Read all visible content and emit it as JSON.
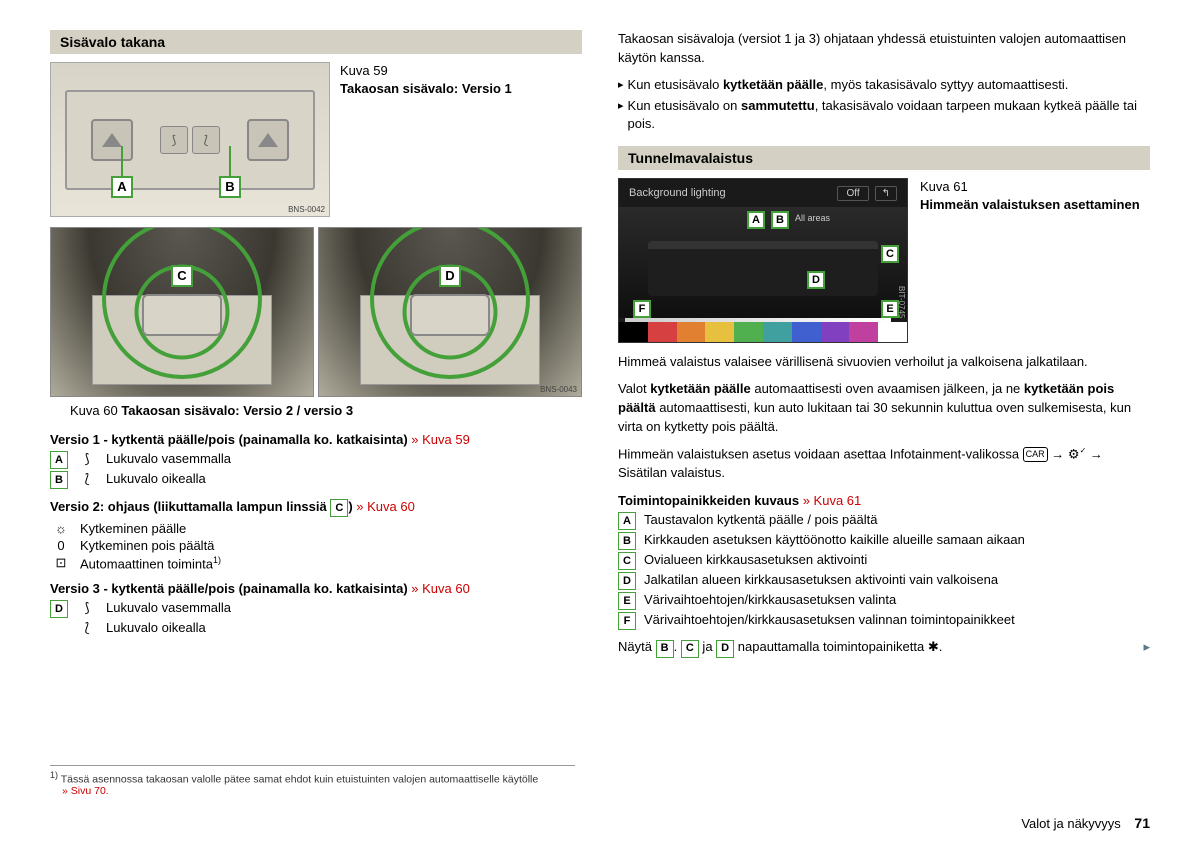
{
  "leftCol": {
    "section1": {
      "title": "Sisävalo takana",
      "fig59": {
        "label": "Kuva 59",
        "caption": "Takaosan sisävalo: Versio 1",
        "badges": [
          "A",
          "B"
        ],
        "imgCode": "BNS-0042"
      },
      "fig60": {
        "badges": [
          "C",
          "D"
        ],
        "imgCode": "BNS-0043",
        "captionPrefix": "Kuva 60",
        "caption": "Takaosan sisävalo: Versio 2 / versio 3"
      },
      "v1": {
        "title": "Versio 1 - kytkentä päälle/pois (painamalla ko. katkaisinta)",
        "ref": "» Kuva 59",
        "rows": [
          {
            "badge": "A",
            "icon": "⟆",
            "text": "Lukuvalo vasemmalla"
          },
          {
            "badge": "B",
            "icon": "⟅",
            "text": "Lukuvalo oikealla"
          }
        ]
      },
      "v2": {
        "title": "Versio 2: ohjaus (liikuttamalla lampun linssiä",
        "titleBadge": "C",
        "titleEnd": ")",
        "ref": "» Kuva 60",
        "rows": [
          {
            "icon": "☼",
            "text": "Kytkeminen päälle"
          },
          {
            "icon": "0",
            "text": "Kytkeminen pois päältä"
          },
          {
            "icon": "⊡",
            "text": "Automaattinen toiminta",
            "sup": "1)"
          }
        ]
      },
      "v3": {
        "title": "Versio 3 - kytkentä päälle/pois (painamalla ko. katkaisinta)",
        "ref": "» Kuva 60",
        "rows": [
          {
            "badge": "D",
            "icon": "⟆",
            "text": "Lukuvalo vasemmalla"
          },
          {
            "badge": "",
            "icon": "⟅",
            "text": "Lukuvalo oikealla"
          }
        ]
      }
    }
  },
  "rightCol": {
    "introPara": "Takaosan sisävaloja (versiot 1 ja 3) ohjataan yhdessä etuistuinten valojen automaattisen käytön kanssa.",
    "bullets": [
      {
        "pre": "Kun etusisävalo ",
        "bold": "kytketään päälle",
        "post": ", myös takasisävalo syttyy automaattisesti."
      },
      {
        "pre": "Kun etusisävalo on ",
        "bold": "sammutettu",
        "post": ", takasisävalo voidaan tarpeen mukaan kytkeä päälle tai pois."
      }
    ],
    "section2": {
      "title": "Tunnelmavalaistus",
      "fig61": {
        "label": "Kuva 61",
        "caption": "Himmeän valaistuksen asettaminen",
        "header": "Background lighting",
        "offLabel": "Off",
        "allAreas": "All areas",
        "badges": [
          "A",
          "B",
          "C",
          "D",
          "E",
          "F"
        ],
        "colors": [
          "#000000",
          "#d64040",
          "#e08030",
          "#e8c040",
          "#50b050",
          "#40a0a0",
          "#4060d0",
          "#8040c0",
          "#c040a0",
          "#ffffff"
        ],
        "imgCode": "BIT-0745"
      },
      "paras": [
        "Himmeä valaistus valaisee värillisenä sivuovien verhoilut ja valkoisena jalkatilaan.",
        {
          "pre": "Valot ",
          "b1": "kytketään päälle",
          "mid": " automaattisesti oven avaamisen jälkeen, ja ne ",
          "b2": "kytketään pois päältä",
          "post": " automaattisesti, kun auto lukitaan tai 30 sekunnin kuluttua oven sulkemisesta, kun virta on kytketty pois päältä."
        }
      ],
      "menuLine": {
        "pre": "Himmeän valaistuksen asetus voidaan asettaa Infotainment-valikossa ",
        "end": " Sisätilan valaistus."
      },
      "funcTitle": "Toimintopainikkeiden kuvaus",
      "funcRef": "» Kuva 61",
      "funcRows": [
        {
          "badge": "A",
          "text": "Taustavalon kytkentä päälle / pois päältä"
        },
        {
          "badge": "B",
          "text": "Kirkkauden asetuksen käyttöönotto kaikille alueille samaan aikaan"
        },
        {
          "badge": "C",
          "text": "Ovialueen kirkkausasetuksen aktivointi"
        },
        {
          "badge": "D",
          "text": "Jalkatilan alueen kirkkausasetuksen aktivointi vain valkoisena"
        },
        {
          "badge": "E",
          "text": "Värivaihtoehtojen/kirkkausasetuksen valinta"
        },
        {
          "badge": "F",
          "text": "Värivaihtoehtojen/kirkkausasetuksen valinnan toimintopainikkeet"
        }
      ],
      "finalLine": {
        "pre": "Näytä ",
        "b1": "B",
        "dot": ". ",
        "b2": "C",
        "mid": " ja ",
        "b3": "D",
        "post": " napauttamalla toimintopainiketta ✱."
      }
    }
  },
  "footnote": {
    "marker": "1)",
    "text": "Tässä asennossa takaosan valolle pätee samat ehdot kuin etuistuinten valojen automaattiselle käytölle",
    "ref": "» Sivu 70."
  },
  "footer": {
    "section": "Valot ja näkyvyys",
    "page": "71"
  }
}
